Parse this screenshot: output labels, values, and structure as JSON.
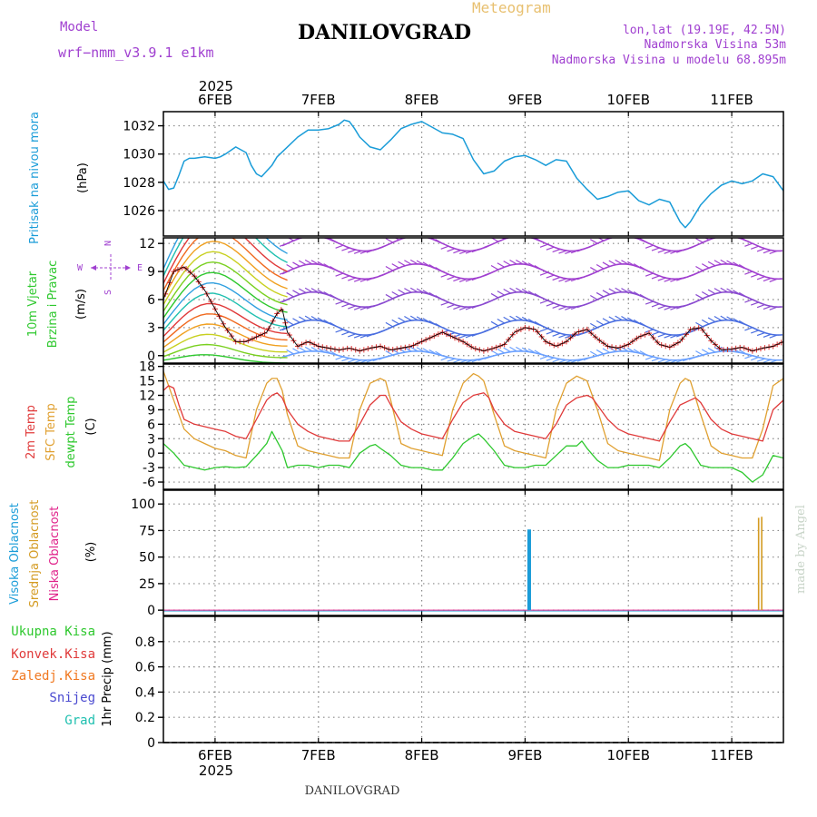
{
  "header": {
    "title": "DANILOVGRAD",
    "subtitle": "Meteogram",
    "model_label": "Model",
    "model_name": "wrf−nmm_v3.9.1  e1km",
    "location": "lon,lat (19.19E, 42.5N)",
    "elevation": "Nadmorska Visina 53m",
    "model_elevation": "Nadmorska Visina u modelu 68.895m",
    "footer": "DANILOVGRAD",
    "credit": "made by Angel",
    "year": "2025"
  },
  "colors": {
    "pressure": "#1a9cd8",
    "temp2m": "#e03a3a",
    "sfc": "#e0a030",
    "dewpt": "#2ec82e",
    "high_cloud": "#1a9cd8",
    "mid_cloud": "#d49b22",
    "low_cloud": "#e0218a",
    "purple": "#a040d0",
    "total_precip": "#2ec82e",
    "conv_precip": "#e03a3a",
    "frozen_precip": "#f07820",
    "snow": "#4a4ad0",
    "hail": "#20c0b0"
  },
  "chart_data": [
    {
      "type": "line",
      "id": "pressure",
      "ylabel_title": "Pritisak na nivou mora",
      "ylabel_unit": "(hPa)",
      "ylim": [
        1024.2,
        1033.0
      ],
      "yticks": [
        1026,
        1028,
        1030,
        1032
      ],
      "xlim": [
        5.5,
        11.5
      ],
      "xticks": [
        6,
        7,
        8,
        9,
        10,
        11
      ],
      "xtick_labels": [
        "6FEB",
        "7FEB",
        "8FEB",
        "9FEB",
        "10FEB",
        "11FEB"
      ],
      "grid": true,
      "series": [
        {
          "x": [
            5.5,
            5.55,
            5.6,
            5.65,
            5.7,
            5.75,
            5.8,
            5.9,
            6.0,
            6.05,
            6.1,
            6.2,
            6.3,
            6.35,
            6.4,
            6.45,
            6.5,
            6.55,
            6.6,
            6.7,
            6.8,
            6.9,
            7.0,
            7.1,
            7.2,
            7.25,
            7.3,
            7.35,
            7.4,
            7.5,
            7.6,
            7.7,
            7.8,
            7.9,
            8.0,
            8.1,
            8.2,
            8.3,
            8.4,
            8.5,
            8.6,
            8.7,
            8.8,
            8.9,
            9.0,
            9.1,
            9.2,
            9.3,
            9.4,
            9.5,
            9.6,
            9.7,
            9.8,
            9.9,
            10.0,
            10.1,
            10.2,
            10.3,
            10.4,
            10.5,
            10.55,
            10.6,
            10.7,
            10.8,
            10.9,
            11.0,
            11.1,
            11.2,
            11.3,
            11.4,
            11.5
          ],
          "y": [
            1028.1,
            1027.5,
            1027.6,
            1028.5,
            1029.5,
            1029.7,
            1029.7,
            1029.8,
            1029.7,
            1029.8,
            1030.0,
            1030.5,
            1030.1,
            1029.2,
            1028.6,
            1028.4,
            1028.8,
            1029.2,
            1029.8,
            1030.5,
            1031.2,
            1031.7,
            1031.7,
            1031.8,
            1032.1,
            1032.4,
            1032.3,
            1031.8,
            1031.2,
            1030.5,
            1030.3,
            1031.0,
            1031.8,
            1032.1,
            1032.3,
            1031.9,
            1031.5,
            1031.4,
            1031.1,
            1029.6,
            1028.6,
            1028.8,
            1029.5,
            1029.8,
            1029.9,
            1029.6,
            1029.2,
            1029.6,
            1029.5,
            1028.3,
            1027.5,
            1026.8,
            1027.0,
            1027.3,
            1027.4,
            1026.7,
            1026.4,
            1026.8,
            1026.6,
            1025.2,
            1024.8,
            1025.2,
            1026.4,
            1027.2,
            1027.8,
            1028.1,
            1027.9,
            1028.1,
            1028.6,
            1028.4,
            1027.4
          ]
        }
      ]
    },
    {
      "type": "line",
      "id": "wind",
      "ylabel_title_1": "10m Vjetar",
      "ylabel_title_2": "Brzina i Pravac",
      "ylabel_unit": "(m/s)",
      "compass_n": "N",
      "compass_e": "E",
      "compass_w": "W",
      "compass_s": "S",
      "ylim": [
        -0.8,
        12.6
      ],
      "yticks": [
        0,
        3,
        6,
        9,
        12
      ],
      "xlim": [
        5.5,
        11.5
      ],
      "xticks": [
        6,
        7,
        8,
        9,
        10,
        11
      ],
      "grid": true,
      "series": [
        {
          "x": [
            5.5,
            5.6,
            5.7,
            5.8,
            5.9,
            6.0,
            6.1,
            6.2,
            6.3,
            6.4,
            6.5,
            6.6,
            6.65,
            6.7,
            6.8,
            6.9,
            7.0,
            7.1,
            7.2,
            7.3,
            7.4,
            7.5,
            7.6,
            7.7,
            7.8,
            7.9,
            8.0,
            8.1,
            8.2,
            8.3,
            8.4,
            8.5,
            8.6,
            8.7,
            8.8,
            8.9,
            9.0,
            9.1,
            9.2,
            9.3,
            9.4,
            9.5,
            9.6,
            9.7,
            9.8,
            9.9,
            10.0,
            10.1,
            10.2,
            10.3,
            10.4,
            10.5,
            10.6,
            10.7,
            10.8,
            10.9,
            11.0,
            11.1,
            11.2,
            11.3,
            11.4,
            11.5
          ],
          "y": [
            6.0,
            9.0,
            9.5,
            8.5,
            7.0,
            5.0,
            3.0,
            1.5,
            1.5,
            2.0,
            2.5,
            4.5,
            5.0,
            2.5,
            1.0,
            1.5,
            1.0,
            0.8,
            0.6,
            0.8,
            0.5,
            0.8,
            1.0,
            0.6,
            0.8,
            1.0,
            1.5,
            2.0,
            2.5,
            2.0,
            1.5,
            0.8,
            0.5,
            0.8,
            1.2,
            2.5,
            3.0,
            2.8,
            1.5,
            1.0,
            1.5,
            2.5,
            2.8,
            1.8,
            1.0,
            0.8,
            1.2,
            2.0,
            2.4,
            1.2,
            0.9,
            1.5,
            2.8,
            3.0,
            1.6,
            0.6,
            0.7,
            0.9,
            0.5,
            0.8,
            1.0,
            1.5
          ]
        }
      ]
    },
    {
      "type": "line",
      "id": "temperature",
      "ylabel_title_1": "2m Temp",
      "ylabel_title_2": "SFC Temp",
      "ylabel_title_3": "dewpt Temp",
      "ylabel_unit": "(C)",
      "ylim": [
        -7.5,
        18.5
      ],
      "yticks": [
        -6,
        -3,
        0,
        3,
        6,
        9,
        12,
        15,
        18
      ],
      "xlim": [
        5.5,
        11.5
      ],
      "xticks": [
        6,
        7,
        8,
        9,
        10,
        11
      ],
      "grid": true,
      "series": [
        {
          "x": [
            5.5,
            5.55,
            5.6,
            5.65,
            5.7,
            5.8,
            5.9,
            6.0,
            6.1,
            6.2,
            6.3,
            6.4,
            6.5,
            6.55,
            6.6,
            6.65,
            6.7,
            6.8,
            6.9,
            7.0,
            7.1,
            7.2,
            7.3,
            7.4,
            7.5,
            7.6,
            7.65,
            7.7,
            7.8,
            7.9,
            8.0,
            8.1,
            8.2,
            8.3,
            8.4,
            8.5,
            8.6,
            8.65,
            8.7,
            8.8,
            8.9,
            9.0,
            9.1,
            9.2,
            9.3,
            9.4,
            9.5,
            9.6,
            9.65,
            9.7,
            9.8,
            9.9,
            10.0,
            10.1,
            10.2,
            10.3,
            10.4,
            10.5,
            10.6,
            10.65,
            10.7,
            10.8,
            10.9,
            11.0,
            11.1,
            11.2,
            11.3,
            11.4,
            11.5
          ],
          "y": [
            13,
            14,
            13.5,
            10,
            7,
            6,
            5.5,
            5.0,
            4.5,
            3.5,
            3.0,
            7.0,
            11.0,
            12.0,
            12.5,
            11.5,
            9.0,
            6.0,
            4.5,
            3.5,
            3.0,
            2.5,
            2.5,
            6.0,
            10.0,
            12.0,
            12.0,
            10.0,
            6.5,
            5.0,
            4.0,
            3.5,
            3.0,
            7.0,
            10.5,
            12.0,
            12.5,
            11.5,
            9.0,
            6.0,
            4.5,
            4.0,
            3.5,
            3.0,
            6.0,
            10.0,
            11.5,
            12.0,
            11.5,
            10.0,
            7.0,
            5.0,
            4.0,
            3.5,
            3.0,
            2.5,
            6.5,
            10.0,
            11.0,
            11.5,
            10.5,
            7.0,
            5.0,
            4.0,
            3.5,
            3.0,
            2.5,
            9.0,
            11.0
          ]
        },
        {
          "x": [
            5.5,
            5.6,
            5.7,
            5.8,
            5.9,
            6.0,
            6.1,
            6.2,
            6.3,
            6.4,
            6.5,
            6.55,
            6.6,
            6.65,
            6.7,
            6.8,
            6.9,
            7.0,
            7.1,
            7.2,
            7.3,
            7.4,
            7.5,
            7.6,
            7.65,
            7.7,
            7.8,
            7.9,
            8.0,
            8.1,
            8.2,
            8.3,
            8.4,
            8.5,
            8.55,
            8.6,
            8.7,
            8.8,
            8.9,
            9.0,
            9.1,
            9.2,
            9.3,
            9.4,
            9.5,
            9.55,
            9.6,
            9.7,
            9.8,
            9.9,
            10.0,
            10.1,
            10.2,
            10.3,
            10.4,
            10.5,
            10.55,
            10.6,
            10.7,
            10.8,
            10.9,
            11.0,
            11.1,
            11.2,
            11.3,
            11.4,
            11.5
          ],
          "y": [
            17,
            11,
            5.0,
            3.0,
            2.0,
            1.0,
            0.5,
            -0.5,
            -1.0,
            9.0,
            14.5,
            15.5,
            15.5,
            13.0,
            8.0,
            1.5,
            0.5,
            0.0,
            -0.5,
            -1.0,
            -1.0,
            9.0,
            14.5,
            15.5,
            15.0,
            11.0,
            2.0,
            1.0,
            0.5,
            0.0,
            -0.5,
            9.0,
            14.5,
            16.5,
            16.0,
            15.0,
            8.0,
            1.5,
            0.5,
            0.0,
            -0.5,
            -1.0,
            9.0,
            14.5,
            16.0,
            15.5,
            15.0,
            9.0,
            2.0,
            0.5,
            0.0,
            -0.5,
            -1.0,
            -1.5,
            9.0,
            14.5,
            15.5,
            15.0,
            8.0,
            1.5,
            0.0,
            -0.5,
            -1.0,
            -1.0,
            5.0,
            14.0,
            15.5
          ]
        },
        {
          "x": [
            5.5,
            5.6,
            5.7,
            5.8,
            5.9,
            6.0,
            6.1,
            6.2,
            6.3,
            6.4,
            6.5,
            6.55,
            6.6,
            6.65,
            6.7,
            6.8,
            6.9,
            7.0,
            7.1,
            7.2,
            7.3,
            7.4,
            7.5,
            7.55,
            7.6,
            7.7,
            7.8,
            7.9,
            8.0,
            8.1,
            8.2,
            8.3,
            8.4,
            8.5,
            8.55,
            8.6,
            8.7,
            8.8,
            8.9,
            9.0,
            9.1,
            9.2,
            9.3,
            9.4,
            9.5,
            9.55,
            9.6,
            9.7,
            9.8,
            9.9,
            10.0,
            10.1,
            10.2,
            10.3,
            10.4,
            10.5,
            10.55,
            10.6,
            10.7,
            10.8,
            10.9,
            11.0,
            11.1,
            11.2,
            11.3,
            11.4,
            11.5
          ],
          "y": [
            2.0,
            0.0,
            -2.5,
            -3.0,
            -3.5,
            -3.0,
            -2.8,
            -3.0,
            -2.8,
            -0.5,
            2.0,
            4.5,
            2.5,
            0.5,
            -3.0,
            -2.5,
            -2.5,
            -3.0,
            -2.5,
            -2.5,
            -3.0,
            0.0,
            1.5,
            1.8,
            1.0,
            -0.5,
            -2.5,
            -3.0,
            -3.0,
            -3.5,
            -3.5,
            -1.0,
            2.0,
            3.5,
            4.0,
            3.0,
            0.5,
            -2.5,
            -3.0,
            -3.0,
            -2.5,
            -2.5,
            -0.5,
            1.5,
            1.5,
            2.5,
            1.0,
            -1.5,
            -3.0,
            -3.0,
            -2.5,
            -2.5,
            -2.5,
            -3.0,
            -1.0,
            1.5,
            2.0,
            1.0,
            -2.5,
            -3.0,
            -3.0,
            -3.0,
            -4.0,
            -6.0,
            -4.5,
            -0.5,
            -1.0
          ]
        }
      ]
    },
    {
      "type": "bar",
      "id": "cloud",
      "ylabel_title_1": "Visoka Oblacnost",
      "ylabel_title_2": "Srednja Oblacnost",
      "ylabel_title_3": "Niska Oblacnost",
      "ylabel_unit": "(%)",
      "ylim": [
        -5,
        113
      ],
      "yticks": [
        0,
        25,
        50,
        75,
        100
      ],
      "xlim": [
        5.5,
        11.5
      ],
      "xticks": [
        6,
        7,
        8,
        9,
        10,
        11
      ],
      "grid": true,
      "bars": [
        {
          "series": "high",
          "x": 9.04,
          "value": 76
        },
        {
          "series": "mid",
          "x": 11.26,
          "value": 87
        },
        {
          "series": "mid",
          "x": 11.29,
          "value": 88
        }
      ]
    },
    {
      "type": "bar",
      "id": "precip",
      "ylabel_unit": "1hr Precip (mm)",
      "legend": [
        "Ukupna Kisa",
        "Konvek.Kisa",
        "Zaledj.Kisa",
        "Snijeg",
        "Grad"
      ],
      "ylim": [
        0,
        1.0
      ],
      "yticks": [
        0,
        0.2,
        0.4,
        0.6,
        0.8
      ],
      "ytick_labels": [
        "0",
        "0.2",
        "0.4",
        "0.6",
        "0.8"
      ],
      "xlim": [
        5.5,
        11.5
      ],
      "xticks": [
        6,
        7,
        8,
        9,
        10,
        11
      ],
      "xtick_labels": [
        "6FEB",
        "7FEB",
        "8FEB",
        "9FEB",
        "10FEB",
        "11FEB"
      ],
      "grid": true,
      "values": []
    }
  ]
}
